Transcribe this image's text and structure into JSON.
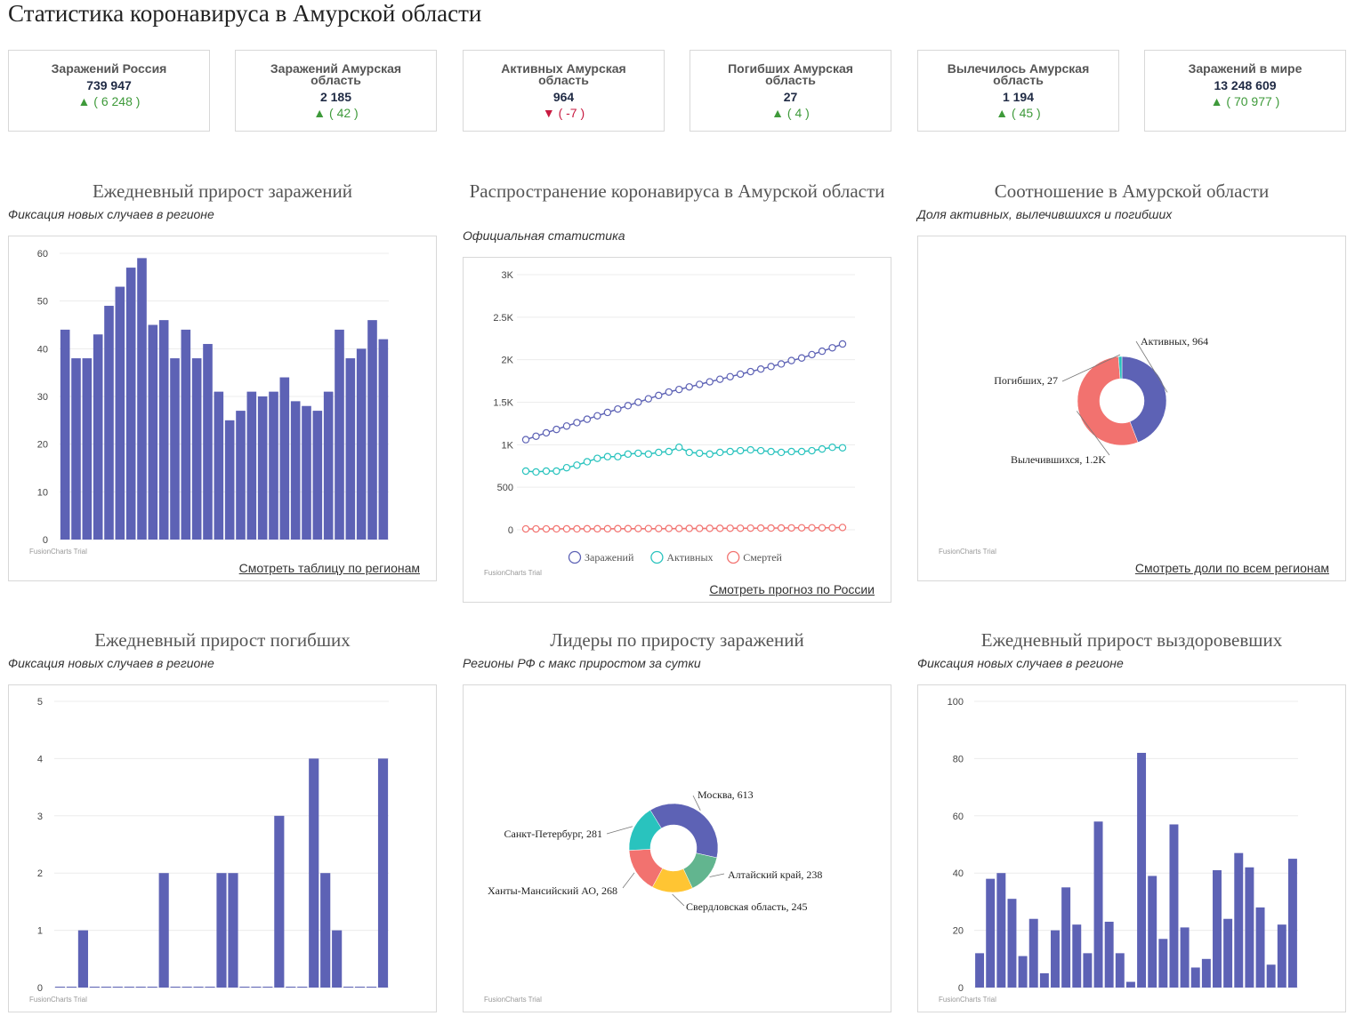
{
  "page_title": "Статистика коронавируса в Амурской области",
  "colors": {
    "bar": "#5d62b5",
    "active": "#29c3be",
    "deaths": "#f2726f",
    "up": "#3e9a3a",
    "down": "#c81b41",
    "yellow": "#ffc533",
    "green": "#62b58f"
  },
  "cards": [
    {
      "title": "Заражений Россия",
      "value": "739 947",
      "delta": "▲ ( 6 248 )",
      "dir": "up"
    },
    {
      "title": "Заражений Амурская область",
      "value": "2 185",
      "delta": "▲ ( 42 )",
      "dir": "up"
    },
    {
      "title": "Активных Амурская область",
      "value": "964",
      "delta": "▼ ( -7 )",
      "dir": "down"
    },
    {
      "title": "Погибших Амурская область",
      "value": "27",
      "delta": "▲ ( 4 )",
      "dir": "up"
    },
    {
      "title": "Вылечилось Амурская область",
      "value": "1 194",
      "delta": "▲ ( 45 )",
      "dir": "up"
    },
    {
      "title": "Заражений в мире",
      "value": "13 248 609",
      "delta": "▲ ( 70 977 )",
      "dir": "up"
    }
  ],
  "panels": {
    "daily_cases": {
      "title": "Ежедневный прирост заражений",
      "subtitle": "Фиксация новых случаев в регионе",
      "link": "Смотреть таблицу по регионам",
      "trial": "FusionCharts Trial"
    },
    "spread": {
      "title": "Распространение коронавируса в Амурской области",
      "subtitle": "Официальная статистика",
      "link": "Смотреть прогноз по России",
      "trial": "FusionCharts Trial"
    },
    "ratio": {
      "title": "Соотношение в Амурской области",
      "subtitle": "Доля активных, вылечившихся и погибших",
      "link": "Смотреть доли по всем регионам",
      "trial": "FusionCharts Trial"
    },
    "daily_deaths": {
      "title": "Ежедневный прирост погибших",
      "subtitle": "Фиксация новых случаев в регионе",
      "trial": "FusionCharts Trial"
    },
    "leaders": {
      "title": "Лидеры по приросту заражений",
      "subtitle": "Регионы РФ с макс приростом за сутки",
      "trial": "FusionCharts Trial"
    },
    "daily_recovered": {
      "title": "Ежедневный прирост выздоровевших",
      "subtitle": "Фиксация новых случаев в регионе",
      "trial": "FusionCharts Trial"
    }
  },
  "chart_data": [
    {
      "id": "daily_cases",
      "type": "bar",
      "ylim": [
        0,
        60
      ],
      "yticks": [
        "0",
        "10",
        "20",
        "30",
        "40",
        "50",
        "60"
      ],
      "values": [
        44,
        38,
        38,
        43,
        49,
        53,
        57,
        59,
        45,
        46,
        38,
        44,
        38,
        41,
        31,
        25,
        27,
        31,
        30,
        31,
        34,
        29,
        28,
        27,
        31,
        44,
        38,
        40,
        46,
        42
      ]
    },
    {
      "id": "spread",
      "type": "line",
      "ylim": [
        0,
        3000
      ],
      "yticks": [
        "0",
        "500",
        "1K",
        "1.5K",
        "2K",
        "2.5K",
        "3K"
      ],
      "legend": "bottom",
      "series": [
        {
          "name": "Заражений",
          "color": "#5d62b5",
          "values": [
            1060,
            1100,
            1140,
            1180,
            1220,
            1260,
            1300,
            1340,
            1380,
            1420,
            1460,
            1500,
            1540,
            1580,
            1620,
            1650,
            1680,
            1710,
            1740,
            1770,
            1800,
            1830,
            1860,
            1890,
            1920,
            1950,
            1990,
            2020,
            2060,
            2100,
            2140,
            2185
          ]
        },
        {
          "name": "Активных",
          "color": "#29c3be",
          "values": [
            690,
            680,
            690,
            690,
            730,
            760,
            800,
            840,
            860,
            860,
            890,
            900,
            890,
            910,
            920,
            970,
            910,
            900,
            890,
            910,
            920,
            930,
            940,
            930,
            920,
            910,
            920,
            920,
            930,
            950,
            970,
            964
          ]
        },
        {
          "name": "Смертей",
          "color": "#f2726f",
          "values": [
            10,
            10,
            10,
            11,
            11,
            11,
            12,
            12,
            12,
            13,
            13,
            14,
            14,
            14,
            15,
            15,
            16,
            16,
            17,
            17,
            18,
            18,
            19,
            20,
            20,
            21,
            22,
            23,
            23,
            23,
            23,
            27
          ]
        }
      ]
    },
    {
      "id": "ratio",
      "type": "pie",
      "slices": [
        {
          "label": "Активных, 964",
          "value": 964,
          "color": "#5d62b5"
        },
        {
          "label": "Вылечившихся, 1.2K",
          "value": 1194,
          "color": "#f2726f"
        },
        {
          "label": "Погибших, 27",
          "value": 27,
          "color": "#29c3be"
        }
      ]
    },
    {
      "id": "daily_deaths",
      "type": "bar",
      "ylim": [
        0,
        5
      ],
      "yticks": [
        "0",
        "1",
        "2",
        "3",
        "4",
        "5"
      ],
      "values": [
        0,
        0,
        1,
        0,
        0,
        0,
        0,
        0,
        0,
        2,
        0,
        0,
        0,
        0,
        2,
        2,
        0,
        0,
        0,
        3,
        0,
        0,
        4,
        2,
        1,
        0,
        0,
        0,
        4
      ]
    },
    {
      "id": "leaders",
      "type": "pie",
      "slices": [
        {
          "label": "Москва, 613",
          "value": 613,
          "color": "#5d62b5"
        },
        {
          "label": "Алтайский край, 238",
          "value": 238,
          "color": "#62b58f"
        },
        {
          "label": "Свердловская область, 245",
          "value": 245,
          "color": "#ffc533"
        },
        {
          "label": "Ханты-Мансийский АО, 268",
          "value": 268,
          "color": "#f2726f"
        },
        {
          "label": "Санкт-Петербург, 281",
          "value": 281,
          "color": "#29c3be"
        }
      ]
    },
    {
      "id": "daily_recovered",
      "type": "bar",
      "ylim": [
        0,
        100
      ],
      "yticks": [
        "0",
        "20",
        "40",
        "60",
        "80",
        "100"
      ],
      "values": [
        12,
        38,
        40,
        31,
        11,
        24,
        5,
        20,
        35,
        22,
        12,
        58,
        23,
        12,
        2,
        82,
        39,
        17,
        57,
        21,
        7,
        10,
        41,
        24,
        47,
        42,
        28,
        8,
        22,
        45
      ]
    }
  ]
}
